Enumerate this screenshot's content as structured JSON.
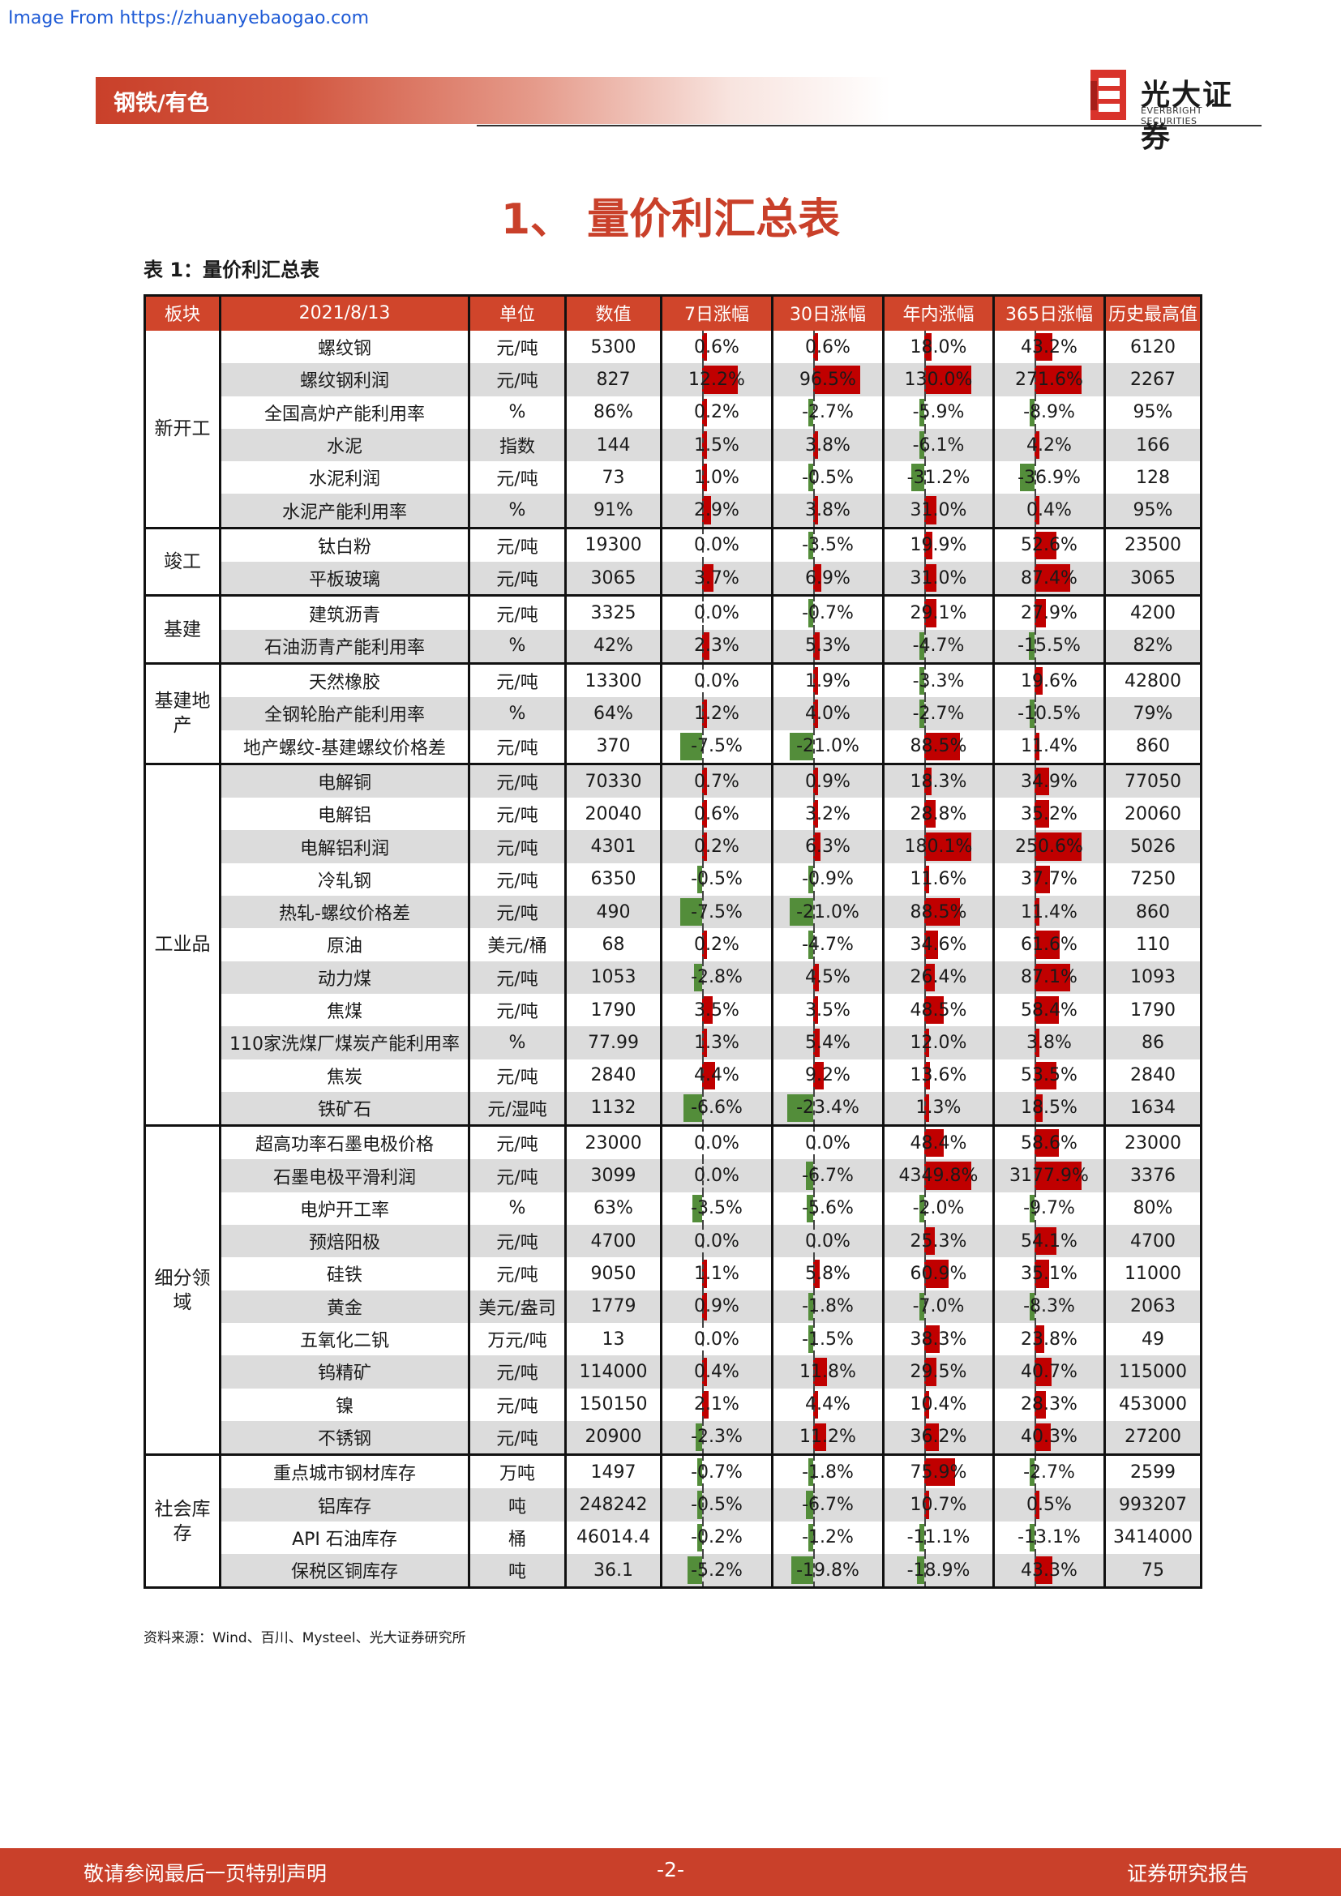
{
  "source_link": "Image From https://zhuanyebaogao.com",
  "header": {
    "label": "钢铁/有色",
    "logo_cn": "光大证券",
    "logo_en": "EVERBRIGHT SECURITIES"
  },
  "section_title": "1、 量价利汇总表",
  "table_caption": "表 1：量价利汇总表",
  "table": {
    "headers": [
      "板块",
      "2021/8/13",
      "单位",
      "数值",
      "7日涨幅",
      "30日涨幅",
      "年内涨幅",
      "365日涨幅",
      "历史最高值"
    ],
    "colors": {
      "header_bg": "#d0452b",
      "positive_bar": "#c00000",
      "negative_bar": "#538d3a",
      "shade": "#dcdcdc"
    },
    "groups": [
      {
        "name": "新开工",
        "rows": [
          {
            "item": "螺纹钢",
            "unit": "元/吨",
            "value": "5300",
            "d7": "0.6%",
            "d30": "0.6%",
            "ytd": "18.0%",
            "d365": "43.2%",
            "high": "6120"
          },
          {
            "item": "螺纹钢利润",
            "unit": "元/吨",
            "value": "827",
            "d7": "12.2%",
            "d30": "96.5%",
            "ytd": "130.0%",
            "d365": "271.6%",
            "high": "2267"
          },
          {
            "item": "全国高炉产能利用率",
            "unit": "%",
            "value": "86%",
            "d7": "0.2%",
            "d30": "-2.7%",
            "ytd": "-5.9%",
            "d365": "-8.9%",
            "high": "95%"
          },
          {
            "item": "水泥",
            "unit": "指数",
            "value": "144",
            "d7": "1.5%",
            "d30": "3.8%",
            "ytd": "-6.1%",
            "d365": "4.2%",
            "high": "166"
          },
          {
            "item": "水泥利润",
            "unit": "元/吨",
            "value": "73",
            "d7": "1.0%",
            "d30": "-0.5%",
            "ytd": "-31.2%",
            "d365": "-36.9%",
            "high": "128"
          },
          {
            "item": "水泥产能利用率",
            "unit": "%",
            "value": "91%",
            "d7": "2.9%",
            "d30": "3.8%",
            "ytd": "31.0%",
            "d365": "0.4%",
            "high": "95%"
          }
        ]
      },
      {
        "name": "竣工",
        "rows": [
          {
            "item": "钛白粉",
            "unit": "元/吨",
            "value": "19300",
            "d7": "0.0%",
            "d30": "-3.5%",
            "ytd": "19.9%",
            "d365": "52.6%",
            "high": "23500"
          },
          {
            "item": "平板玻璃",
            "unit": "元/吨",
            "value": "3065",
            "d7": "3.7%",
            "d30": "6.9%",
            "ytd": "31.0%",
            "d365": "87.4%",
            "high": "3065"
          }
        ]
      },
      {
        "name": "基建",
        "rows": [
          {
            "item": "建筑沥青",
            "unit": "元/吨",
            "value": "3325",
            "d7": "0.0%",
            "d30": "-0.7%",
            "ytd": "29.1%",
            "d365": "27.9%",
            "high": "4200"
          },
          {
            "item": "石油沥青产能利用率",
            "unit": "%",
            "value": "42%",
            "d7": "2.3%",
            "d30": "5.3%",
            "ytd": "-4.7%",
            "d365": "-15.5%",
            "high": "82%"
          }
        ]
      },
      {
        "name": "基建地产",
        "rows": [
          {
            "item": "天然橡胶",
            "unit": "元/吨",
            "value": "13300",
            "d7": "0.0%",
            "d30": "1.9%",
            "ytd": "-3.3%",
            "d365": "19.6%",
            "high": "42800"
          },
          {
            "item": "全钢轮胎产能利用率",
            "unit": "%",
            "value": "64%",
            "d7": "1.2%",
            "d30": "4.0%",
            "ytd": "-2.7%",
            "d365": "-10.5%",
            "high": "79%"
          },
          {
            "item": "地产螺纹-基建螺纹价格差",
            "unit": "元/吨",
            "value": "370",
            "d7": "-7.5%",
            "d30": "-21.0%",
            "ytd": "88.5%",
            "d365": "11.4%",
            "high": "860"
          }
        ]
      },
      {
        "name": "工业品",
        "rows": [
          {
            "item": "电解铜",
            "unit": "元/吨",
            "value": "70330",
            "d7": "0.7%",
            "d30": "0.9%",
            "ytd": "18.3%",
            "d365": "34.9%",
            "high": "77050"
          },
          {
            "item": "电解铝",
            "unit": "元/吨",
            "value": "20040",
            "d7": "0.6%",
            "d30": "3.2%",
            "ytd": "28.8%",
            "d365": "35.2%",
            "high": "20060"
          },
          {
            "item": "电解铝利润",
            "unit": "元/吨",
            "value": "4301",
            "d7": "0.2%",
            "d30": "6.3%",
            "ytd": "180.1%",
            "d365": "250.6%",
            "high": "5026"
          },
          {
            "item": "冷轧钢",
            "unit": "元/吨",
            "value": "6350",
            "d7": "-0.5%",
            "d30": "-0.9%",
            "ytd": "11.6%",
            "d365": "37.7%",
            "high": "7250"
          },
          {
            "item": "热轧-螺纹价格差",
            "unit": "元/吨",
            "value": "490",
            "d7": "-7.5%",
            "d30": "-21.0%",
            "ytd": "88.5%",
            "d365": "11.4%",
            "high": "860"
          },
          {
            "item": "原油",
            "unit": "美元/桶",
            "value": "68",
            "d7": "0.2%",
            "d30": "-4.7%",
            "ytd": "34.6%",
            "d365": "61.6%",
            "high": "110"
          },
          {
            "item": "动力煤",
            "unit": "元/吨",
            "value": "1053",
            "d7": "-2.8%",
            "d30": "4.5%",
            "ytd": "26.4%",
            "d365": "87.1%",
            "high": "1093"
          },
          {
            "item": "焦煤",
            "unit": "元/吨",
            "value": "1790",
            "d7": "3.5%",
            "d30": "3.5%",
            "ytd": "48.5%",
            "d365": "58.4%",
            "high": "1790"
          },
          {
            "item": "110家洗煤厂煤炭产能利用率",
            "unit": "%",
            "value": "77.99",
            "d7": "1.3%",
            "d30": "5.4%",
            "ytd": "12.0%",
            "d365": "3.8%",
            "high": "86"
          },
          {
            "item": "焦炭",
            "unit": "元/吨",
            "value": "2840",
            "d7": "4.4%",
            "d30": "9.2%",
            "ytd": "13.6%",
            "d365": "53.5%",
            "high": "2840"
          },
          {
            "item": "铁矿石",
            "unit": "元/湿吨",
            "value": "1132",
            "d7": "-6.6%",
            "d30": "-23.4%",
            "ytd": "1.3%",
            "d365": "18.5%",
            "high": "1634"
          }
        ]
      },
      {
        "name": "细分领域",
        "rows": [
          {
            "item": "超高功率石墨电极价格",
            "unit": "元/吨",
            "value": "23000",
            "d7": "0.0%",
            "d30": "0.0%",
            "ytd": "48.4%",
            "d365": "58.6%",
            "high": "23000"
          },
          {
            "item": "石墨电极平滑利润",
            "unit": "元/吨",
            "value": "3099",
            "d7": "0.0%",
            "d30": "-6.7%",
            "ytd": "4349.8%",
            "d365": "3177.9%",
            "high": "3376"
          },
          {
            "item": "电炉开工率",
            "unit": "%",
            "value": "63%",
            "d7": "-3.5%",
            "d30": "-5.6%",
            "ytd": "-2.0%",
            "d365": "-9.7%",
            "high": "80%"
          },
          {
            "item": "预焙阳极",
            "unit": "元/吨",
            "value": "4700",
            "d7": "0.0%",
            "d30": "0.0%",
            "ytd": "25.3%",
            "d365": "54.1%",
            "high": "4700"
          },
          {
            "item": "硅铁",
            "unit": "元/吨",
            "value": "9050",
            "d7": "1.1%",
            "d30": "5.8%",
            "ytd": "60.9%",
            "d365": "35.1%",
            "high": "11000"
          },
          {
            "item": "黄金",
            "unit": "美元/盎司",
            "value": "1779",
            "d7": "0.9%",
            "d30": "-1.8%",
            "ytd": "-7.0%",
            "d365": "-8.3%",
            "high": "2063"
          },
          {
            "item": "五氧化二钒",
            "unit": "万元/吨",
            "value": "13",
            "d7": "0.0%",
            "d30": "-1.5%",
            "ytd": "38.3%",
            "d365": "23.8%",
            "high": "49"
          },
          {
            "item": "钨精矿",
            "unit": "元/吨",
            "value": "114000",
            "d7": "0.4%",
            "d30": "11.8%",
            "ytd": "29.5%",
            "d365": "40.7%",
            "high": "115000"
          },
          {
            "item": "镍",
            "unit": "元/吨",
            "value": "150150",
            "d7": "2.1%",
            "d30": "4.4%",
            "ytd": "10.4%",
            "d365": "28.3%",
            "high": "453000"
          },
          {
            "item": "不锈钢",
            "unit": "元/吨",
            "value": "20900",
            "d7": "-2.3%",
            "d30": "11.2%",
            "ytd": "36.2%",
            "d365": "40.3%",
            "high": "27200"
          }
        ]
      },
      {
        "name": "社会库存",
        "rows": [
          {
            "item": "重点城市钢材库存",
            "unit": "万吨",
            "value": "1497",
            "d7": "-0.7%",
            "d30": "-1.8%",
            "ytd": "75.9%",
            "d365": "-2.7%",
            "high": "2599"
          },
          {
            "item": "铝库存",
            "unit": "吨",
            "value": "248242",
            "d7": "-0.5%",
            "d30": "-6.7%",
            "ytd": "10.7%",
            "d365": "0.5%",
            "high": "993207"
          },
          {
            "item": "API 石油库存",
            "unit": "桶",
            "value": "46014.4",
            "d7": "-0.2%",
            "d30": "-1.2%",
            "ytd": "-11.1%",
            "d365": "-13.1%",
            "high": "3414000"
          },
          {
            "item": "保税区铜库存",
            "unit": "吨",
            "value": "36.1",
            "d7": "-5.2%",
            "d30": "-19.8%",
            "ytd": "-18.9%",
            "d365": "43.3%",
            "high": "75"
          }
        ]
      }
    ]
  },
  "source_note": "资料来源：Wind、百川、Mysteel、光大证券研究所",
  "footer": {
    "left": "敬请参阅最后一页特别声明",
    "center": "-2-",
    "right": "证券研究报告"
  }
}
